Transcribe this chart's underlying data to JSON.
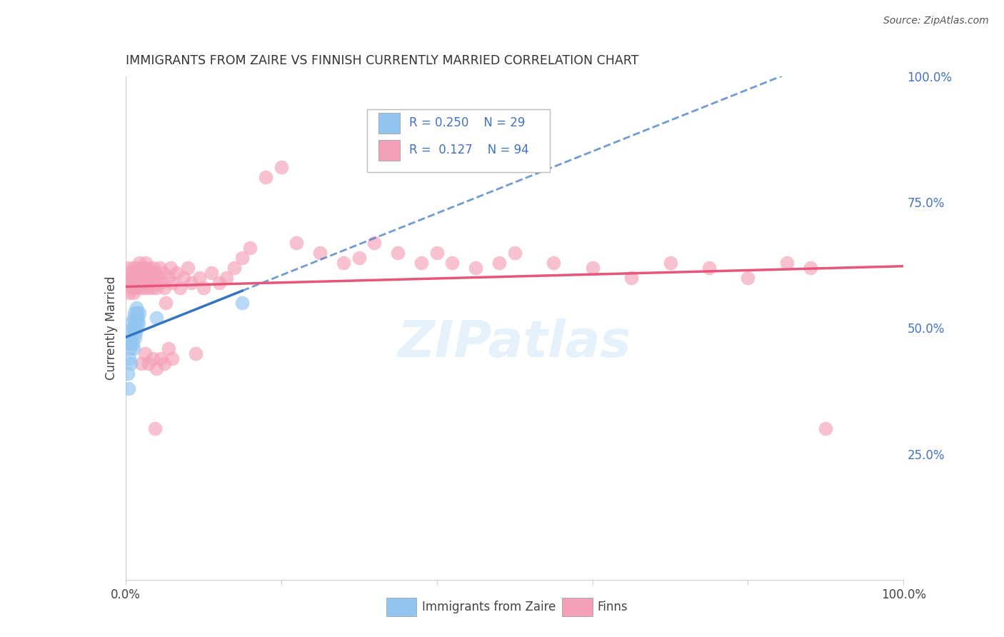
{
  "title": "IMMIGRANTS FROM ZAIRE VS FINNISH CURRENTLY MARRIED CORRELATION CHART",
  "source": "Source: ZipAtlas.com",
  "ylabel": "Currently Married",
  "right_yticks": [
    "100.0%",
    "75.0%",
    "50.0%",
    "25.0%"
  ],
  "right_ytick_vals": [
    1.0,
    0.75,
    0.5,
    0.25
  ],
  "legend_blue_r": "0.250",
  "legend_blue_n": "29",
  "legend_pink_r": "0.127",
  "legend_pink_n": "94",
  "blue_color": "#92C5F0",
  "pink_color": "#F4A0B8",
  "blue_line_color": "#3373C4",
  "pink_line_color": "#E8547A",
  "watermark": "ZIPatlas",
  "blue_scatter_x": [
    0.003,
    0.004,
    0.005,
    0.005,
    0.006,
    0.007,
    0.007,
    0.008,
    0.008,
    0.009,
    0.009,
    0.01,
    0.01,
    0.01,
    0.011,
    0.011,
    0.012,
    0.012,
    0.013,
    0.013,
    0.014,
    0.014,
    0.015,
    0.015,
    0.016,
    0.017,
    0.018,
    0.04,
    0.15
  ],
  "blue_scatter_y": [
    0.41,
    0.38,
    0.44,
    0.47,
    0.46,
    0.48,
    0.43,
    0.49,
    0.51,
    0.47,
    0.5,
    0.46,
    0.5,
    0.52,
    0.5,
    0.53,
    0.51,
    0.48,
    0.52,
    0.49,
    0.51,
    0.54,
    0.5,
    0.53,
    0.52,
    0.51,
    0.53,
    0.52,
    0.55
  ],
  "pink_scatter_x": [
    0.002,
    0.003,
    0.005,
    0.006,
    0.007,
    0.008,
    0.009,
    0.01,
    0.01,
    0.011,
    0.012,
    0.013,
    0.014,
    0.015,
    0.016,
    0.017,
    0.018,
    0.019,
    0.02,
    0.021,
    0.022,
    0.023,
    0.024,
    0.025,
    0.026,
    0.027,
    0.028,
    0.029,
    0.03,
    0.031,
    0.032,
    0.033,
    0.034,
    0.035,
    0.036,
    0.037,
    0.038,
    0.04,
    0.042,
    0.044,
    0.046,
    0.048,
    0.05,
    0.052,
    0.055,
    0.058,
    0.06,
    0.065,
    0.07,
    0.075,
    0.08,
    0.085,
    0.09,
    0.095,
    0.1,
    0.11,
    0.12,
    0.13,
    0.14,
    0.15,
    0.16,
    0.18,
    0.2,
    0.22,
    0.25,
    0.28,
    0.3,
    0.32,
    0.35,
    0.38,
    0.4,
    0.42,
    0.45,
    0.48,
    0.5,
    0.55,
    0.6,
    0.65,
    0.7,
    0.75,
    0.8,
    0.85,
    0.88,
    0.9,
    0.02,
    0.025,
    0.03,
    0.035,
    0.04,
    0.045,
    0.05,
    0.055,
    0.06,
    0.038
  ],
  "pink_scatter_y": [
    0.6,
    0.62,
    0.57,
    0.59,
    0.61,
    0.58,
    0.6,
    0.57,
    0.62,
    0.59,
    0.61,
    0.58,
    0.6,
    0.62,
    0.59,
    0.61,
    0.63,
    0.58,
    0.6,
    0.62,
    0.59,
    0.61,
    0.58,
    0.6,
    0.63,
    0.59,
    0.61,
    0.58,
    0.62,
    0.6,
    0.59,
    0.61,
    0.58,
    0.6,
    0.62,
    0.59,
    0.61,
    0.58,
    0.6,
    0.62,
    0.59,
    0.61,
    0.58,
    0.55,
    0.6,
    0.62,
    0.59,
    0.61,
    0.58,
    0.6,
    0.62,
    0.59,
    0.45,
    0.6,
    0.58,
    0.61,
    0.59,
    0.6,
    0.62,
    0.64,
    0.66,
    0.8,
    0.82,
    0.67,
    0.65,
    0.63,
    0.64,
    0.67,
    0.65,
    0.63,
    0.65,
    0.63,
    0.62,
    0.63,
    0.65,
    0.63,
    0.62,
    0.6,
    0.63,
    0.62,
    0.6,
    0.63,
    0.62,
    0.3,
    0.43,
    0.45,
    0.43,
    0.44,
    0.42,
    0.44,
    0.43,
    0.46,
    0.44,
    0.3
  ],
  "xlim": [
    0,
    1.0
  ],
  "ylim": [
    0,
    1.0
  ],
  "grid_color": "#cccccc",
  "spine_color": "#cccccc"
}
